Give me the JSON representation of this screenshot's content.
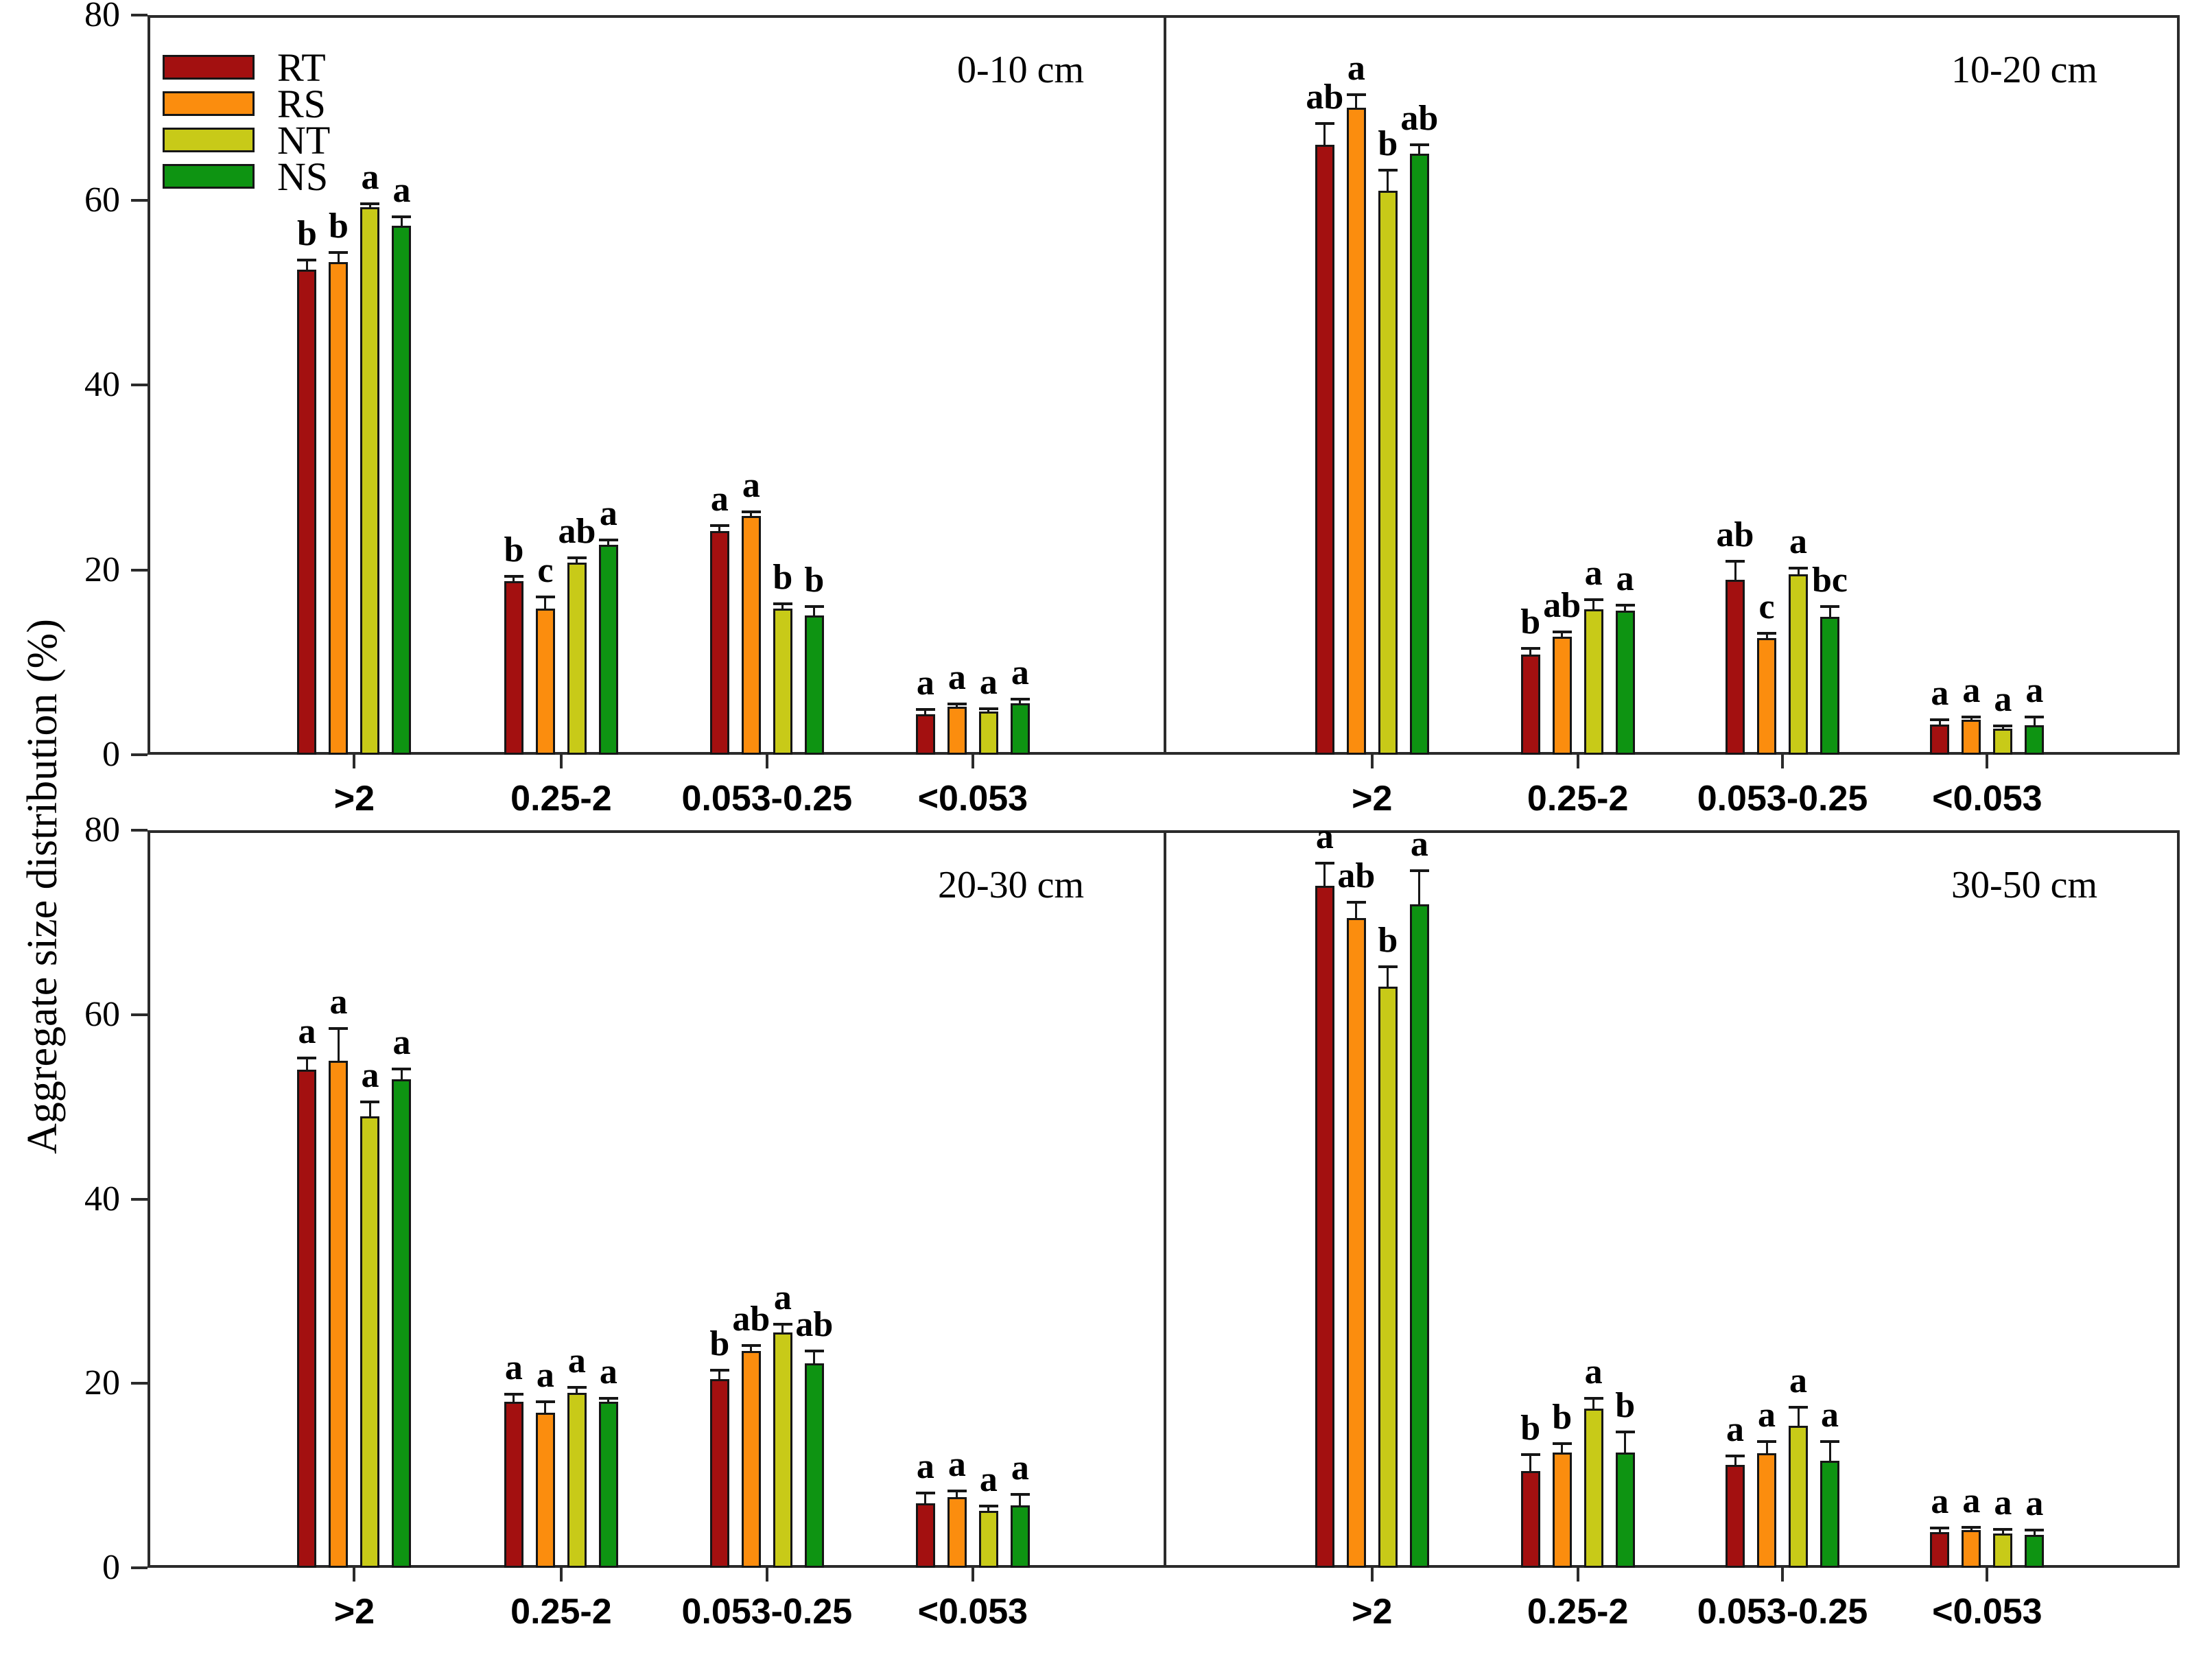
{
  "figure": {
    "y_axis_label": "Aggregate size distribution (%)",
    "y_ticks": [
      "0",
      "20",
      "40",
      "60",
      "80"
    ],
    "y_tick_values": [
      0,
      20,
      40,
      60,
      80
    ],
    "axis_color": "#2b2b2b",
    "legend": [
      {
        "label": "RT",
        "color": "#a31010"
      },
      {
        "label": "RS",
        "color": "#fb8d0e"
      },
      {
        "label": "NT",
        "color": "#c8ca18"
      },
      {
        "label": "NS",
        "color": "#0e9412"
      }
    ]
  },
  "chart_data": [
    {
      "type": "bar",
      "title": "0-10 cm",
      "categories": [
        ">2",
        "0.25-2",
        "0.053-0.25",
        "<0.053"
      ],
      "xlabel": "",
      "ylabel": "Aggregate size distribution (%)",
      "ylim": [
        0,
        80
      ],
      "legend_position": "upper-left",
      "series": [
        {
          "name": "RT",
          "color": "#a31010",
          "values": [
            52.5,
            18.8,
            24.2,
            4.4
          ],
          "errors": [
            1.0,
            0.5,
            0.6,
            0.5
          ],
          "letters": [
            "b",
            "b",
            "a",
            "a"
          ]
        },
        {
          "name": "RS",
          "color": "#fb8d0e",
          "values": [
            53.3,
            15.8,
            25.8,
            5.2
          ],
          "errors": [
            1.0,
            1.3,
            0.5,
            0.3
          ],
          "letters": [
            "b",
            "c",
            "a",
            "a"
          ]
        },
        {
          "name": "NT",
          "color": "#c8ca18",
          "values": [
            59.2,
            20.8,
            15.8,
            4.7
          ],
          "errors": [
            0.4,
            0.5,
            0.5,
            0.3
          ],
          "letters": [
            "a",
            "ab",
            "b",
            "a"
          ]
        },
        {
          "name": "NS",
          "color": "#0e9412",
          "values": [
            57.2,
            22.7,
            15.1,
            5.6
          ],
          "errors": [
            1.0,
            0.5,
            0.9,
            0.4
          ],
          "letters": [
            "a",
            "a",
            "b",
            "a"
          ]
        }
      ]
    },
    {
      "type": "bar",
      "title": "10-20 cm",
      "categories": [
        ">2",
        "0.25-2",
        "0.053-0.25",
        "<0.053"
      ],
      "xlabel": "",
      "ylabel": "",
      "ylim": [
        0,
        80
      ],
      "series": [
        {
          "name": "RT",
          "color": "#a31010",
          "values": [
            66.0,
            10.8,
            18.9,
            3.3
          ],
          "errors": [
            2.3,
            0.7,
            2.0,
            0.5
          ],
          "letters": [
            "ab",
            "b",
            "ab",
            "a"
          ]
        },
        {
          "name": "RS",
          "color": "#fb8d0e",
          "values": [
            70.0,
            12.8,
            12.6,
            3.8
          ],
          "errors": [
            1.4,
            0.5,
            0.5,
            0.3
          ],
          "letters": [
            "a",
            "ab",
            "c",
            "a"
          ]
        },
        {
          "name": "NT",
          "color": "#c8ca18",
          "values": [
            61.0,
            15.7,
            19.5,
            2.8
          ],
          "errors": [
            2.2,
            1.1,
            0.7,
            0.3
          ],
          "letters": [
            "b",
            "a",
            "a",
            "a"
          ]
        },
        {
          "name": "NS",
          "color": "#0e9412",
          "values": [
            65.0,
            15.6,
            14.9,
            3.2
          ],
          "errors": [
            1.0,
            0.6,
            1.1,
            0.9
          ],
          "letters": [
            "ab",
            "a",
            "bc",
            "a"
          ]
        }
      ]
    },
    {
      "type": "bar",
      "title": "20-30 cm",
      "categories": [
        ">2",
        "0.25-2",
        "0.053-0.25",
        "<0.053"
      ],
      "xlabel": "",
      "ylabel": "",
      "ylim": [
        0,
        80
      ],
      "series": [
        {
          "name": "RT",
          "color": "#a31010",
          "values": [
            54.0,
            18.0,
            20.5,
            7.0
          ],
          "errors": [
            1.3,
            0.8,
            0.9,
            1.1
          ],
          "letters": [
            "a",
            "a",
            "b",
            "a"
          ]
        },
        {
          "name": "RS",
          "color": "#fb8d0e",
          "values": [
            55.0,
            16.8,
            23.5,
            7.7
          ],
          "errors": [
            3.5,
            1.2,
            0.6,
            0.6
          ],
          "letters": [
            "a",
            "a",
            "ab",
            "a"
          ]
        },
        {
          "name": "NT",
          "color": "#c8ca18",
          "values": [
            49.0,
            19.0,
            25.5,
            6.2
          ],
          "errors": [
            1.5,
            0.6,
            0.9,
            0.5
          ],
          "letters": [
            "a",
            "a",
            "a",
            "a"
          ]
        },
        {
          "name": "NS",
          "color": "#0e9412",
          "values": [
            53.0,
            18.0,
            22.2,
            6.8
          ],
          "errors": [
            1.1,
            0.4,
            1.3,
            1.2
          ],
          "letters": [
            "a",
            "a",
            "ab",
            "a"
          ]
        }
      ]
    },
    {
      "type": "bar",
      "title": "30-50 cm",
      "categories": [
        ">2",
        "0.25-2",
        "0.053-0.25",
        "<0.053"
      ],
      "xlabel": "",
      "ylabel": "",
      "ylim": [
        0,
        80
      ],
      "series": [
        {
          "name": "RT",
          "color": "#a31010",
          "values": [
            74.0,
            10.5,
            11.2,
            3.9
          ],
          "errors": [
            2.4,
            1.8,
            0.9,
            0.4
          ],
          "letters": [
            "a",
            "b",
            "a",
            "a"
          ]
        },
        {
          "name": "RS",
          "color": "#fb8d0e",
          "values": [
            70.5,
            12.5,
            12.4,
            4.1
          ],
          "errors": [
            1.7,
            1.0,
            1.3,
            0.3
          ],
          "letters": [
            "ab",
            "b",
            "a",
            "a"
          ]
        },
        {
          "name": "NT",
          "color": "#c8ca18",
          "values": [
            63.0,
            17.3,
            15.4,
            3.7
          ],
          "errors": [
            2.2,
            1.1,
            2.0,
            0.5
          ],
          "letters": [
            "b",
            "a",
            "a",
            "a"
          ]
        },
        {
          "name": "NS",
          "color": "#0e9412",
          "values": [
            72.0,
            12.5,
            11.6,
            3.6
          ],
          "errors": [
            3.6,
            2.2,
            2.1,
            0.5
          ],
          "letters": [
            "a",
            "b",
            "a",
            "a"
          ]
        }
      ]
    }
  ]
}
